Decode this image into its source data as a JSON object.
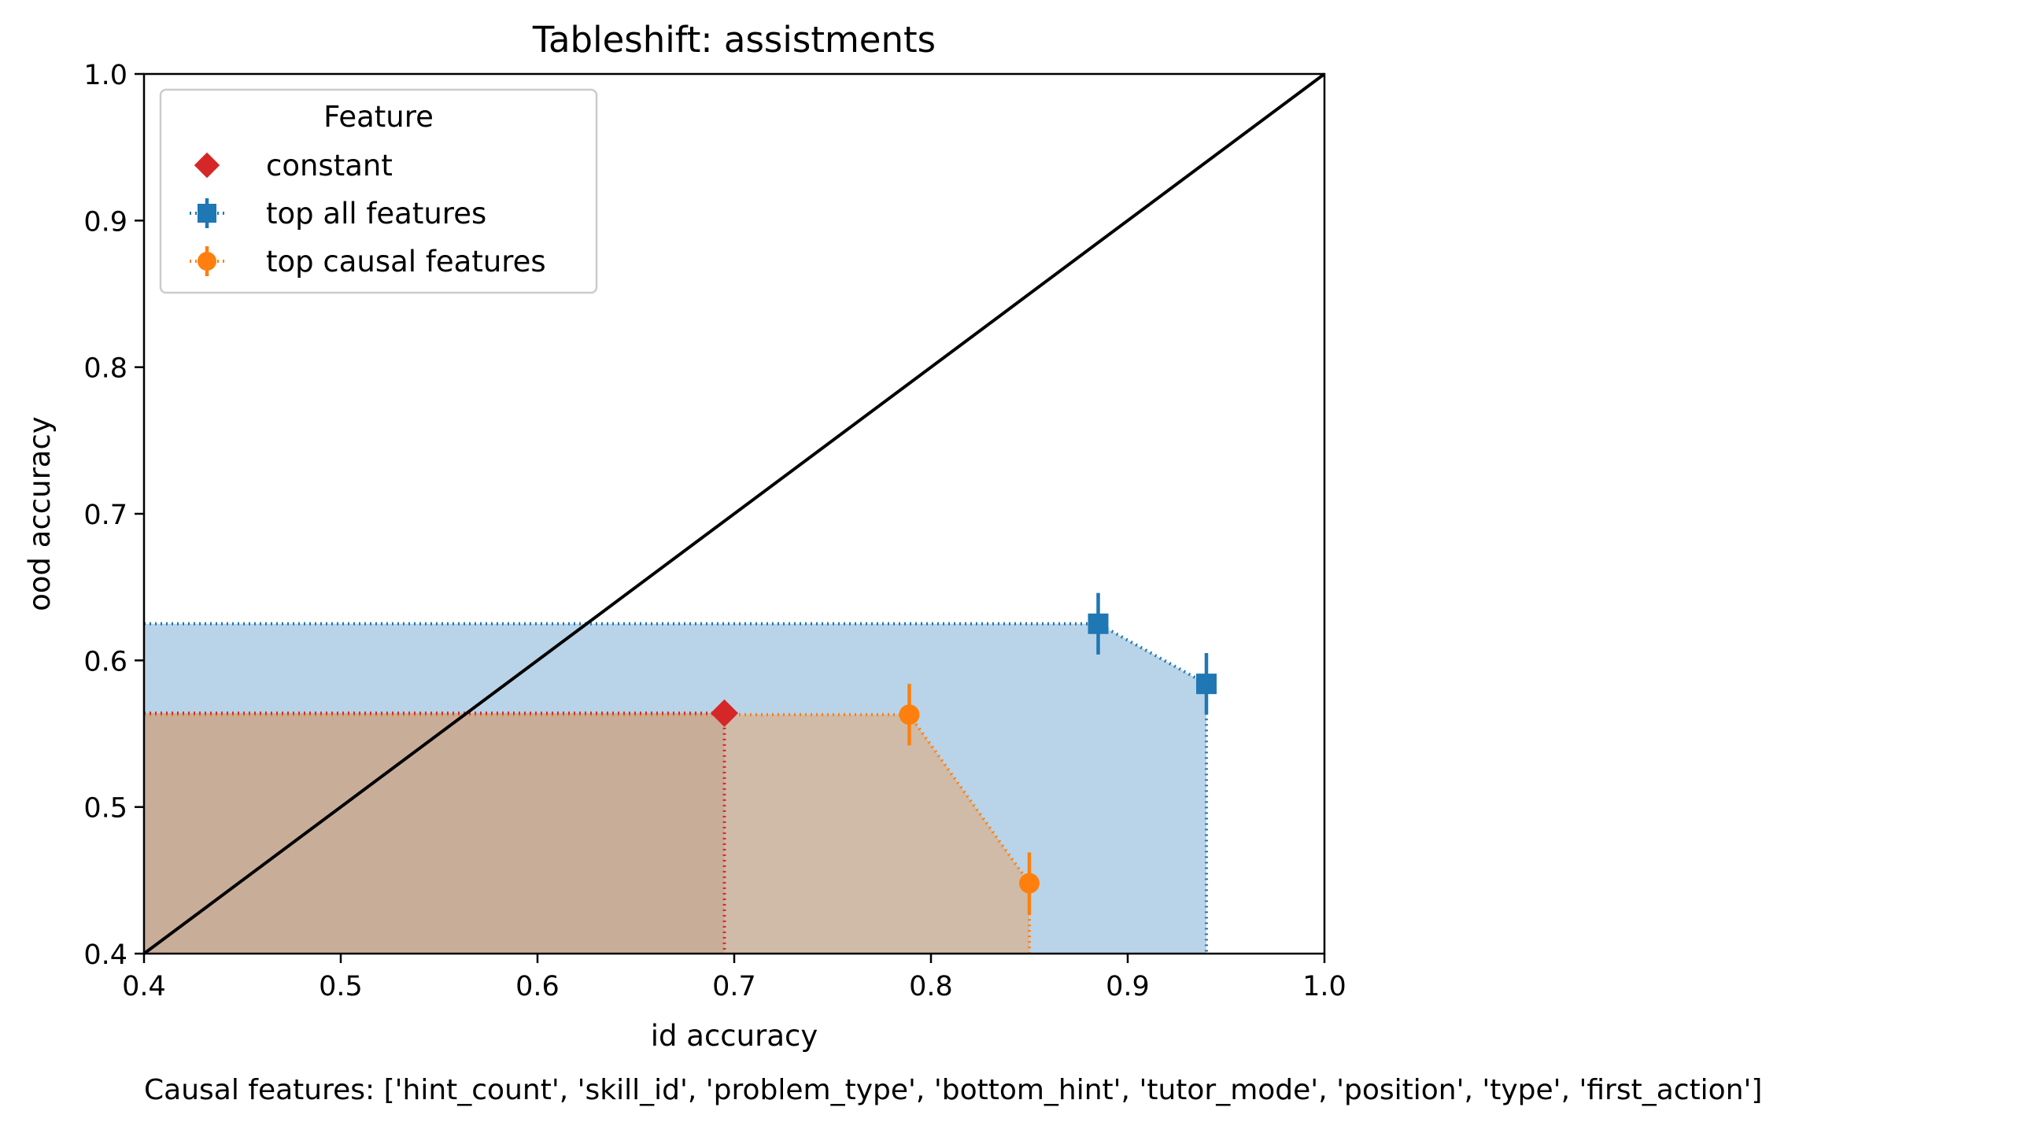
{
  "chart_data": {
    "type": "scatter",
    "title": "Tableshift: assistments",
    "xlabel": "id accuracy",
    "ylabel": "ood accuracy",
    "xlim": [
      0.4,
      1.0
    ],
    "ylim": [
      0.4,
      1.0
    ],
    "xticks": [
      "0.4",
      "0.5",
      "0.6",
      "0.7",
      "0.8",
      "0.9",
      "1.0"
    ],
    "yticks": [
      "0.4",
      "0.5",
      "0.6",
      "0.7",
      "0.8",
      "0.9",
      "1.0"
    ],
    "grid": false,
    "legend": {
      "title": "Feature",
      "placement": "top-left",
      "entries": [
        "constant",
        "top all features",
        "top causal features"
      ]
    },
    "diagonal": [
      [
        0.4,
        0.4
      ],
      [
        1.0,
        1.0
      ]
    ],
    "series": [
      {
        "name": "constant",
        "marker": "diamond",
        "color": "#d62728",
        "points": [
          {
            "x": 0.695,
            "y": 0.564
          }
        ]
      },
      {
        "name": "top all features",
        "marker": "square",
        "color": "#1f77b4",
        "fill": "#b9d4e8",
        "points": [
          {
            "x": 0.885,
            "y": 0.625,
            "yerr": 0.021
          },
          {
            "x": 0.94,
            "y": 0.584,
            "yerr": 0.021
          }
        ]
      },
      {
        "name": "top causal features",
        "marker": "circle",
        "color": "#ff7f0e",
        "fill": "#d0bba8",
        "points": [
          {
            "x": 0.789,
            "y": 0.563,
            "yerr": 0.021
          },
          {
            "x": 0.85,
            "y": 0.448,
            "yerr": 0.021
          }
        ]
      }
    ],
    "constant_fill": "#c8ae99",
    "footnote": "Causal features: ['hint_count', 'skill_id', 'problem_type', 'bottom_hint', 'tutor_mode', 'position', 'type', 'first_action']"
  }
}
